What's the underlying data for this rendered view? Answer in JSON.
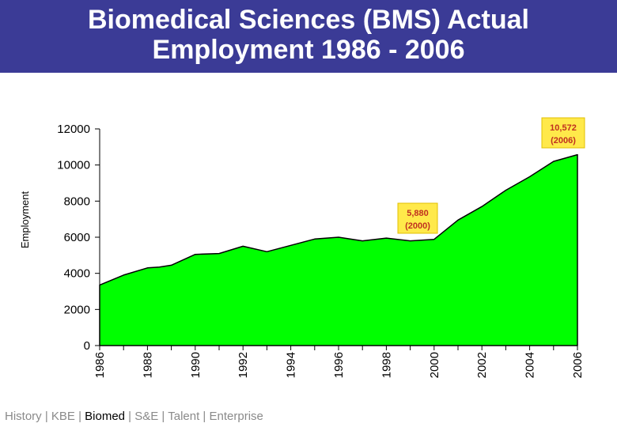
{
  "header": {
    "title_line1": "Biomedical Sciences (BMS) Actual",
    "title_line2": "Employment 1986 - 2006"
  },
  "chart_data": {
    "type": "area",
    "title": "Biomedical Sciences (BMS) Actual Employment 1986 - 2006",
    "ylabel": "Employment",
    "xlabel": "",
    "ylim": [
      0,
      12000
    ],
    "yticks": [
      0,
      2000,
      4000,
      6000,
      8000,
      10000,
      12000
    ],
    "xticks": [
      "1986",
      "1988",
      "1990",
      "1992",
      "1994",
      "1996",
      "1998",
      "2000",
      "2002",
      "2004",
      "2006"
    ],
    "x": [
      1986.0,
      1987.0,
      1988.0,
      1988.5,
      1989.0,
      1990.0,
      1991.0,
      1992.0,
      1993.0,
      1994.0,
      1995.0,
      1996.0,
      1997.0,
      1998.0,
      1999.0,
      2000.0,
      2001.0,
      2002.0,
      2003.0,
      2004.0,
      2005.0,
      2006.0
    ],
    "values": [
      3350,
      3900,
      4300,
      4350,
      4450,
      5050,
      5100,
      5500,
      5200,
      5550,
      5900,
      6000,
      5800,
      5950,
      5800,
      5880,
      6950,
      7700,
      8600,
      9350,
      10200,
      10572
    ],
    "fill_color": "#00ff00",
    "grid": false,
    "annotations": [
      {
        "line1": "5,880",
        "line2": "(2000)",
        "x": 2000,
        "y": 5880
      },
      {
        "line1": "10,572",
        "line2": "(2006)",
        "x": 2006,
        "y": 10572
      }
    ]
  },
  "footer": {
    "items": [
      "History",
      "KBE",
      "Biomed",
      "S&E",
      "Talent",
      "Enterprise"
    ],
    "separator": " | ",
    "active": "Biomed"
  }
}
